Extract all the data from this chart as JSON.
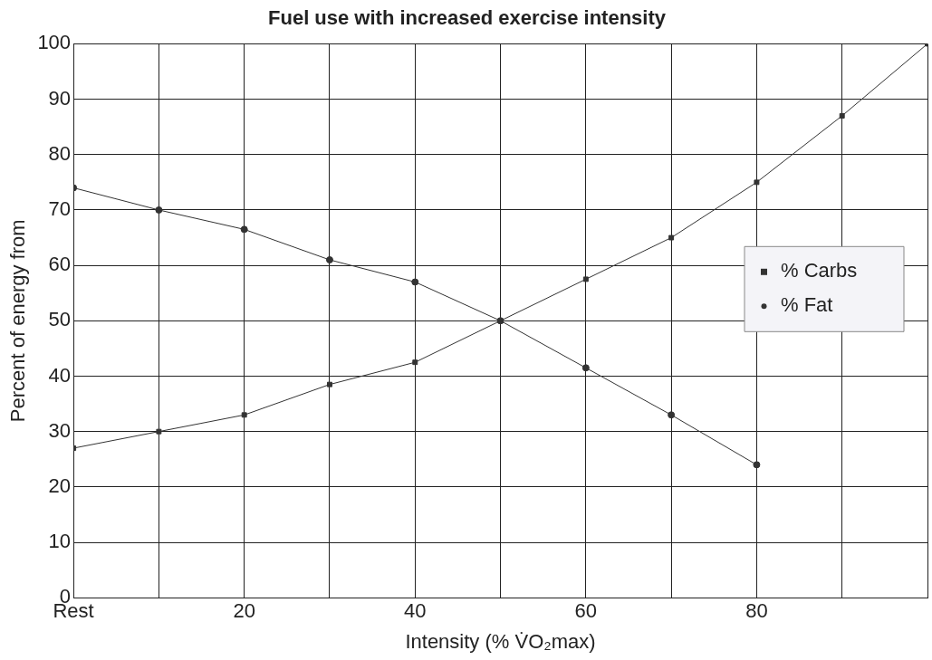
{
  "chart_data": {
    "type": "line",
    "title": "Fuel use with increased exercise intensity",
    "xlabel": "Intensity (% V̇O₂max)",
    "ylabel": "Percent of energy from",
    "x": [
      0,
      10,
      20,
      30,
      40,
      50,
      60,
      70,
      80,
      90,
      100
    ],
    "series": [
      {
        "name": "% Carbs",
        "color": "#333333",
        "marker": "square",
        "values": [
          27,
          30,
          33,
          38.5,
          42.5,
          50,
          57.5,
          65,
          75,
          87,
          100
        ]
      },
      {
        "name": "% Fat",
        "color": "#333333",
        "marker": "circle",
        "values": [
          74,
          70,
          66.5,
          61,
          57,
          50,
          41.5,
          33,
          24,
          null,
          null
        ]
      }
    ],
    "xlim": [
      0,
      100
    ],
    "xticks": [
      {
        "value": 0,
        "label": "Rest"
      },
      {
        "value": 10,
        "label": null
      },
      20,
      {
        "value": 30,
        "label": null
      },
      40,
      {
        "value": 50,
        "label": null
      },
      60,
      {
        "value": 70,
        "label": null
      },
      80,
      {
        "value": 90,
        "label": null
      },
      {
        "value": 100,
        "label": null
      }
    ],
    "ylim": [
      0,
      100
    ],
    "yticks": [
      0,
      10,
      20,
      30,
      40,
      50,
      60,
      70,
      80,
      90,
      100
    ],
    "grid": true,
    "legend": "right"
  }
}
